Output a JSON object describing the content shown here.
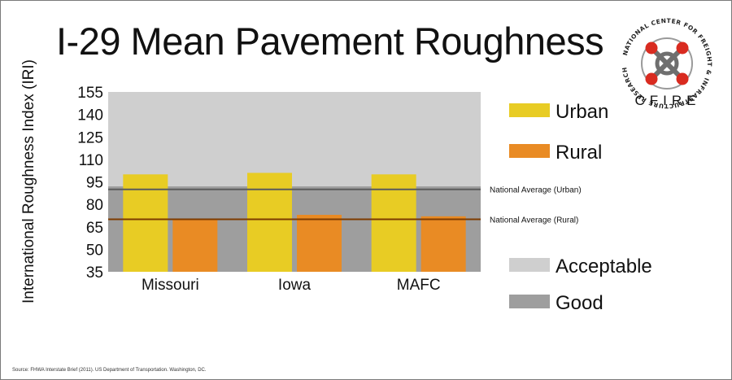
{
  "title": "I-29 Mean Pavement Roughness",
  "logo": {
    "ring_text": "NATIONAL CENTER FOR FREIGHT & INFRASTRUCTURE RESEARCH & EDUCATION",
    "word": "CFIRE",
    "icon": "cfire-logo-icon"
  },
  "source": "Source: FHWA Interstate Brief (2011). US Department of Transportation. Washington, DC.",
  "colors": {
    "urban": "#e8cc24",
    "rural": "#e98b24",
    "acceptable_band": "#cfcfcf",
    "good_band": "#9e9e9e",
    "urban_avg_line": "#5b5b5b",
    "rural_avg_line": "#7d3b00"
  },
  "chart_data": {
    "type": "bar",
    "categories": [
      "Missouri",
      "Iowa",
      "MAFC"
    ],
    "series": [
      {
        "name": "Urban",
        "values": [
          100,
          101,
          100
        ]
      },
      {
        "name": "Rural",
        "values": [
          70,
          73,
          72
        ]
      }
    ],
    "ylabel": "International Roughness Index (IRI)",
    "xlabel": "",
    "ylim": [
      35,
      155
    ],
    "yticks": [
      35,
      50,
      65,
      80,
      95,
      110,
      125,
      140,
      155
    ],
    "bands": [
      {
        "name": "Acceptable",
        "from": 92,
        "to": 155
      },
      {
        "name": "Good",
        "from": 35,
        "to": 92
      }
    ],
    "reference_lines": [
      {
        "label": "National Average (Urban)",
        "value": 90
      },
      {
        "label": "National Average (Rural)",
        "value": 70
      }
    ],
    "legend": [
      {
        "label": "Urban",
        "key": "urban"
      },
      {
        "label": "Rural",
        "key": "rural"
      },
      {
        "label": "Acceptable",
        "key": "acceptable_band"
      },
      {
        "label": "Good",
        "key": "good_band"
      }
    ],
    "legend_position": "right",
    "grid": false
  }
}
